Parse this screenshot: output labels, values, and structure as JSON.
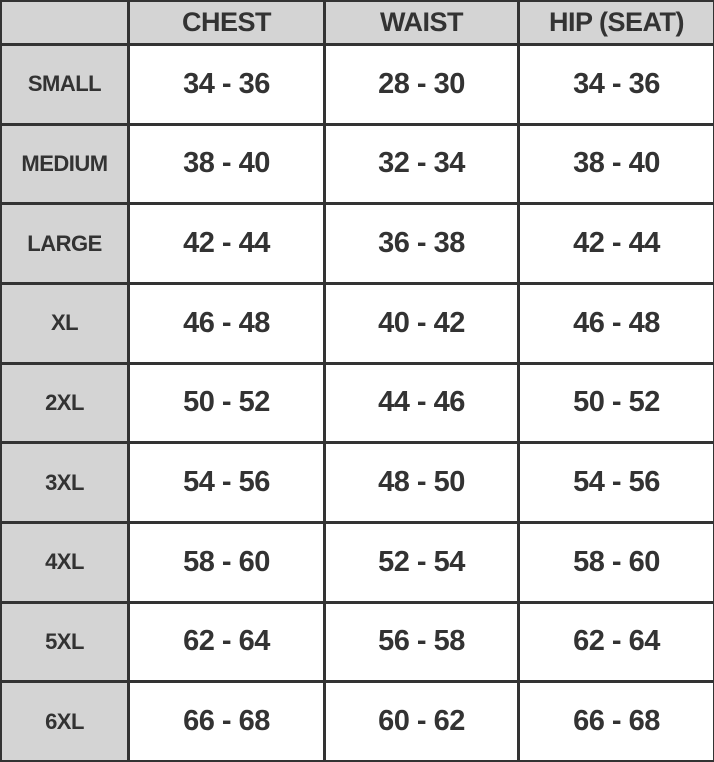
{
  "table": {
    "columns": [
      "",
      "CHEST",
      "WAIST",
      "HIP (SEAT)"
    ],
    "rows": [
      {
        "size": "SMALL",
        "values": [
          "34 - 36",
          "28 - 30",
          "34 - 36"
        ]
      },
      {
        "size": "MEDIUM",
        "values": [
          "38 - 40",
          "32 - 34",
          "38 - 40"
        ]
      },
      {
        "size": "LARGE",
        "values": [
          "42 - 44",
          "36 - 38",
          "42 - 44"
        ]
      },
      {
        "size": "XL",
        "values": [
          "46 - 48",
          "40 - 42",
          "46 - 48"
        ]
      },
      {
        "size": "2XL",
        "values": [
          "50 - 52",
          "44 - 46",
          "50 - 52"
        ]
      },
      {
        "size": "3XL",
        "values": [
          "54 - 56",
          "48 - 50",
          "54 - 56"
        ]
      },
      {
        "size": "4XL",
        "values": [
          "58 - 60",
          "52 - 54",
          "58 - 60"
        ]
      },
      {
        "size": "5XL",
        "values": [
          "62 - 64",
          "56 - 58",
          "62 - 64"
        ]
      },
      {
        "size": "6XL",
        "values": [
          "66 - 68",
          "60 - 62",
          "66 - 68"
        ]
      }
    ]
  },
  "colors": {
    "border": "#333333",
    "header_bg": "#d4d4d4",
    "text": "#333333"
  }
}
